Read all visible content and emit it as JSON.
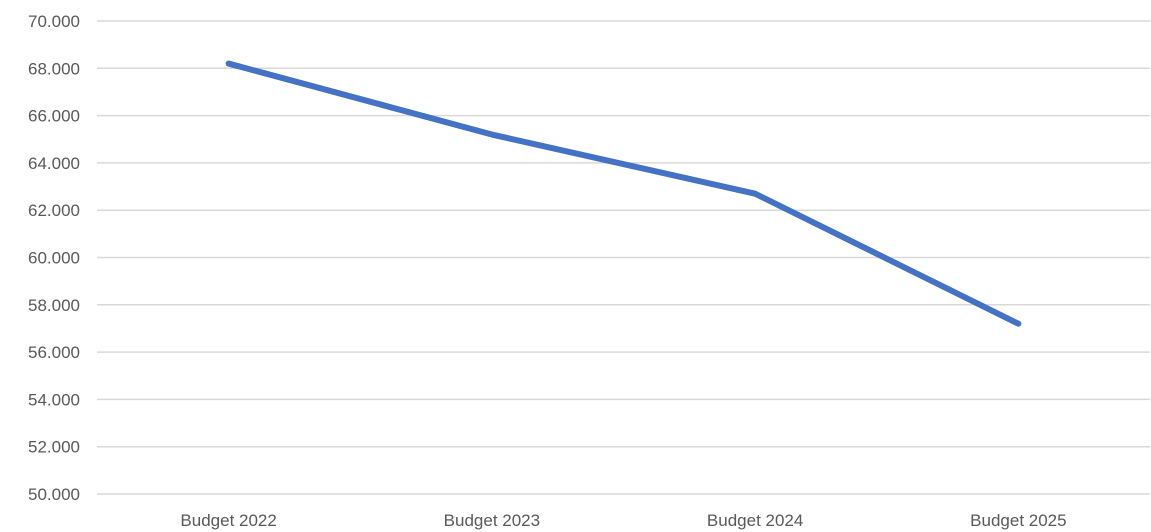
{
  "chart_data": {
    "type": "line",
    "title": "",
    "xlabel": "",
    "ylabel": "",
    "categories": [
      "Budget 2022",
      "Budget 2023",
      "Budget 2024",
      "Budget 2025"
    ],
    "series": [
      {
        "values": [
          68200,
          65200,
          62700,
          57200
        ],
        "color": "#4472c4"
      }
    ],
    "ylim": [
      50000,
      70000
    ],
    "yticks": [
      50000,
      52000,
      54000,
      56000,
      58000,
      60000,
      62000,
      64000,
      66000,
      68000,
      70000
    ],
    "ytick_labels": [
      "50.000",
      "52.000",
      "54.000",
      "56.000",
      "58.000",
      "60.000",
      "62.000",
      "64.000",
      "66.000",
      "68.000",
      "70.000"
    ],
    "grid": true,
    "legend": "none"
  }
}
